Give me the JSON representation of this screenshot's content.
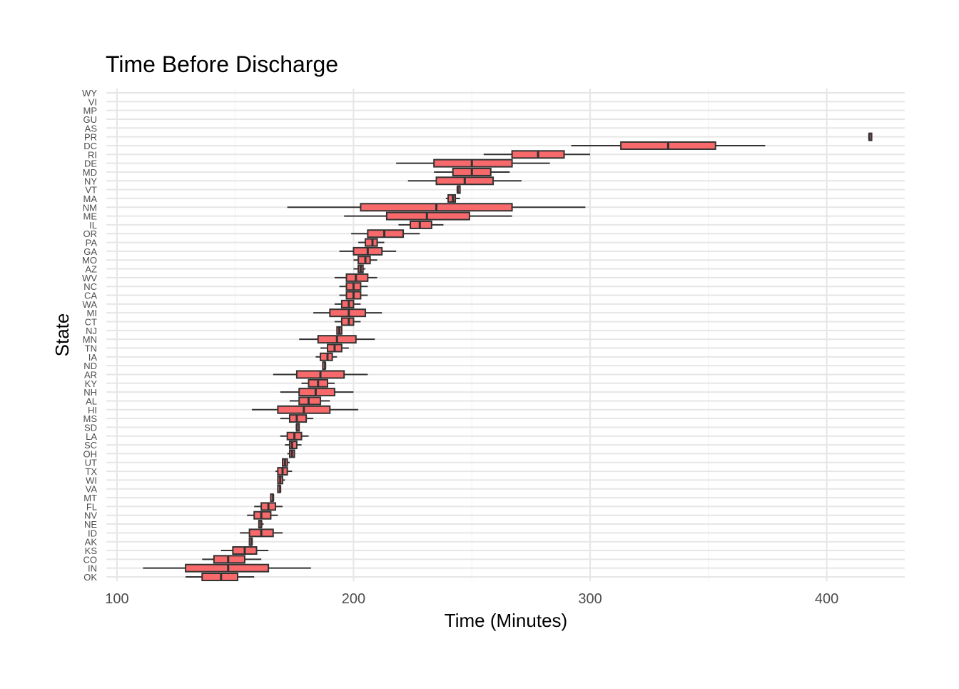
{
  "chart_data": {
    "type": "boxplot",
    "title": "Time Before Discharge",
    "xlabel": "Time (Minutes)",
    "ylabel": "State",
    "xlim": [
      95.5,
      433
    ],
    "x_ticks": [
      100,
      200,
      300,
      400
    ],
    "grid": true,
    "legend": "none",
    "box_color": "#F8696B",
    "box_outline": "#333333",
    "states": [
      {
        "state": "OK",
        "whisker_low": 129,
        "q1": 136,
        "median": 144,
        "q3": 151,
        "whisker_high": 158
      },
      {
        "state": "IN",
        "whisker_low": 111,
        "q1": 129,
        "median": 147,
        "q3": 164,
        "whisker_high": 182
      },
      {
        "state": "CO",
        "whisker_low": 136,
        "q1": 141,
        "median": 147,
        "q3": 154,
        "whisker_high": 161
      },
      {
        "state": "KS",
        "whisker_low": 144,
        "q1": 149,
        "median": 154,
        "q3": 159,
        "whisker_high": 164
      },
      {
        "state": "AK",
        "whisker_low": 156,
        "q1": 156,
        "median": 157,
        "q3": 157,
        "whisker_high": 157
      },
      {
        "state": "ID",
        "whisker_low": 152,
        "q1": 156,
        "median": 161,
        "q3": 166,
        "whisker_high": 170
      },
      {
        "state": "NE",
        "whisker_low": 160,
        "q1": 160,
        "median": 161,
        "q3": 161,
        "whisker_high": 162
      },
      {
        "state": "NV",
        "whisker_low": 155,
        "q1": 158,
        "median": 161,
        "q3": 165,
        "whisker_high": 168
      },
      {
        "state": "FL",
        "whisker_low": 158,
        "q1": 161,
        "median": 164,
        "q3": 167,
        "whisker_high": 170
      },
      {
        "state": "MT",
        "whisker_low": 165,
        "q1": 165,
        "median": 166,
        "q3": 166,
        "whisker_high": 166
      },
      {
        "state": "VA",
        "whisker_low": 168,
        "q1": 168,
        "median": 169,
        "q3": 169,
        "whisker_high": 169
      },
      {
        "state": "WI",
        "whisker_low": 168,
        "q1": 168,
        "median": 169,
        "q3": 170,
        "whisker_high": 171
      },
      {
        "state": "TX",
        "whisker_low": 167,
        "q1": 168,
        "median": 170,
        "q3": 172,
        "whisker_high": 174
      },
      {
        "state": "UT",
        "whisker_low": 170,
        "q1": 170,
        "median": 171,
        "q3": 172,
        "whisker_high": 173
      },
      {
        "state": "OH",
        "whisker_low": 172,
        "q1": 173,
        "median": 174,
        "q3": 175,
        "whisker_high": 175
      },
      {
        "state": "SC",
        "whisker_low": 171,
        "q1": 173,
        "median": 174,
        "q3": 176,
        "whisker_high": 178
      },
      {
        "state": "LA",
        "whisker_low": 169,
        "q1": 172,
        "median": 175,
        "q3": 178,
        "whisker_high": 181
      },
      {
        "state": "SD",
        "whisker_low": 176,
        "q1": 176,
        "median": 176,
        "q3": 177,
        "whisker_high": 177
      },
      {
        "state": "MS",
        "whisker_low": 169,
        "q1": 173,
        "median": 176,
        "q3": 180,
        "whisker_high": 183
      },
      {
        "state": "HI",
        "whisker_low": 157,
        "q1": 168,
        "median": 179,
        "q3": 190,
        "whisker_high": 202
      },
      {
        "state": "AL",
        "whisker_low": 173,
        "q1": 177,
        "median": 181,
        "q3": 186,
        "whisker_high": 190
      },
      {
        "state": "NH",
        "whisker_low": 169,
        "q1": 177,
        "median": 184,
        "q3": 192,
        "whisker_high": 200
      },
      {
        "state": "KY",
        "whisker_low": 178,
        "q1": 181,
        "median": 185,
        "q3": 189,
        "whisker_high": 192
      },
      {
        "state": "AR",
        "whisker_low": 166,
        "q1": 176,
        "median": 186,
        "q3": 196,
        "whisker_high": 206
      },
      {
        "state": "ND",
        "whisker_low": 187,
        "q1": 187,
        "median": 188,
        "q3": 188,
        "whisker_high": 188
      },
      {
        "state": "IA",
        "whisker_low": 184,
        "q1": 186,
        "median": 189,
        "q3": 191,
        "whisker_high": 193
      },
      {
        "state": "TN",
        "whisker_low": 186,
        "q1": 189,
        "median": 192,
        "q3": 195,
        "whisker_high": 198
      },
      {
        "state": "MN",
        "whisker_low": 177,
        "q1": 185,
        "median": 193,
        "q3": 201,
        "whisker_high": 209
      },
      {
        "state": "NJ",
        "whisker_low": 193,
        "q1": 193,
        "median": 194,
        "q3": 195,
        "whisker_high": 195
      },
      {
        "state": "CT",
        "whisker_low": 192,
        "q1": 195,
        "median": 198,
        "q3": 200,
        "whisker_high": 203
      },
      {
        "state": "MI",
        "whisker_low": 183,
        "q1": 190,
        "median": 198,
        "q3": 205,
        "whisker_high": 212
      },
      {
        "state": "WA",
        "whisker_low": 192,
        "q1": 195,
        "median": 198,
        "q3": 200,
        "whisker_high": 203
      },
      {
        "state": "CA",
        "whisker_low": 194,
        "q1": 197,
        "median": 200,
        "q3": 203,
        "whisker_high": 206
      },
      {
        "state": "NC",
        "whisker_low": 194,
        "q1": 197,
        "median": 200,
        "q3": 203,
        "whisker_high": 206
      },
      {
        "state": "WV",
        "whisker_low": 192,
        "q1": 197,
        "median": 201,
        "q3": 206,
        "whisker_high": 210
      },
      {
        "state": "AZ",
        "whisker_low": 200,
        "q1": 202,
        "median": 203,
        "q3": 204,
        "whisker_high": 205
      },
      {
        "state": "MO",
        "whisker_low": 200,
        "q1": 202,
        "median": 205,
        "q3": 207,
        "whisker_high": 210
      },
      {
        "state": "GA",
        "whisker_low": 194,
        "q1": 200,
        "median": 206,
        "q3": 212,
        "whisker_high": 218
      },
      {
        "state": "PA",
        "whisker_low": 202,
        "q1": 205,
        "median": 208,
        "q3": 210,
        "whisker_high": 213
      },
      {
        "state": "OR",
        "whisker_low": 199,
        "q1": 206,
        "median": 213,
        "q3": 221,
        "whisker_high": 228
      },
      {
        "state": "IL",
        "whisker_low": 219,
        "q1": 224,
        "median": 228,
        "q3": 233,
        "whisker_high": 238
      },
      {
        "state": "ME",
        "whisker_low": 196,
        "q1": 214,
        "median": 231,
        "q3": 249,
        "whisker_high": 267
      },
      {
        "state": "NM",
        "whisker_low": 172,
        "q1": 203,
        "median": 235,
        "q3": 267,
        "whisker_high": 298
      },
      {
        "state": "MA",
        "whisker_low": 239,
        "q1": 240,
        "median": 242,
        "q3": 243,
        "whisker_high": 245
      },
      {
        "state": "VT",
        "whisker_low": 244,
        "q1": 244,
        "median": 244,
        "q3": 245,
        "whisker_high": 245
      },
      {
        "state": "NY",
        "whisker_low": 223,
        "q1": 235,
        "median": 247,
        "q3": 259,
        "whisker_high": 271
      },
      {
        "state": "MD",
        "whisker_low": 234,
        "q1": 242,
        "median": 250,
        "q3": 258,
        "whisker_high": 266
      },
      {
        "state": "DE",
        "whisker_low": 218,
        "q1": 234,
        "median": 250,
        "q3": 267,
        "whisker_high": 283
      },
      {
        "state": "RI",
        "whisker_low": 255,
        "q1": 267,
        "median": 278,
        "q3": 289,
        "whisker_high": 300
      },
      {
        "state": "DC",
        "whisker_low": 292,
        "q1": 313,
        "median": 333,
        "q3": 353,
        "whisker_high": 374
      },
      {
        "state": "PR",
        "whisker_low": 418,
        "q1": 418,
        "median": 418,
        "q3": 419,
        "whisker_high": 419
      },
      {
        "state": "AS"
      },
      {
        "state": "GU"
      },
      {
        "state": "MP"
      },
      {
        "state": "VI"
      },
      {
        "state": "WY"
      }
    ]
  }
}
